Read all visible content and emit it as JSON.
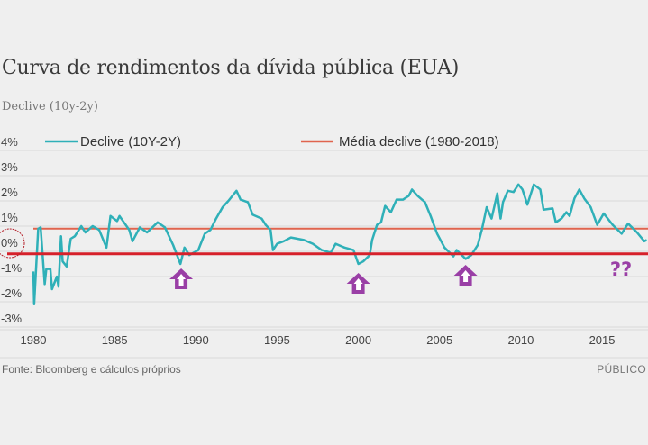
{
  "title": "Curva de rendimentos da dívida pública (EUA)",
  "subtitle": "Declive (10y-2y)",
  "source": "Fonte: Bloomberg e cálculos próprios",
  "brand": "PÚBLICO",
  "colors": {
    "series": "#2fb0b8",
    "average": "#e0644e",
    "annotation_line": "#d6202a",
    "annotation_arrows": "#9a3fa6",
    "grid": "#d8d8d8"
  },
  "annotations": {
    "question_marks": "??",
    "arrow_years": [
      1989.1,
      2000.0,
      2006.6
    ],
    "zero_line_value": -0.1,
    "circled_tick": "0%"
  },
  "chart_data": {
    "type": "line",
    "title": "Curva de rendimentos da dívida pública (EUA)",
    "subtitle": "Declive (10y-2y)",
    "xlabel": "",
    "ylabel": "",
    "xlim": [
      1978.9,
      2017.85
    ],
    "ylim": [
      -3,
      4
    ],
    "grid": true,
    "legend_position": "top",
    "x_ticks": [
      1980,
      1985,
      1990,
      1995,
      2000,
      2005,
      2010,
      2015
    ],
    "x_tick_labels": [
      "1980",
      "1985",
      "1990",
      "1995",
      "2000",
      "2005",
      "2010",
      "2015"
    ],
    "y_ticks": [
      4,
      3,
      2,
      1,
      0,
      -1,
      -2,
      -3
    ],
    "y_tick_labels": [
      "4%",
      "3%",
      "2%",
      "1%",
      "0%",
      "-1%",
      "-2%",
      "-3%"
    ],
    "series": [
      {
        "name": "Declive (10Y-2Y)",
        "x": [
          1980.0,
          1980.05,
          1980.3,
          1980.45,
          1980.7,
          1980.8,
          1981.05,
          1981.15,
          1981.45,
          1981.55,
          1981.7,
          1981.8,
          1982.05,
          1982.3,
          1982.55,
          1982.95,
          1983.2,
          1983.65,
          1984.05,
          1984.5,
          1984.75,
          1985.15,
          1985.3,
          1985.9,
          1986.1,
          1986.55,
          1987.0,
          1987.65,
          1988.1,
          1988.6,
          1989.05,
          1989.3,
          1989.6,
          1990.15,
          1990.55,
          1990.9,
          1991.25,
          1991.65,
          1992.0,
          1992.5,
          1992.75,
          1993.2,
          1993.5,
          1994.05,
          1994.3,
          1994.6,
          1994.75,
          1995.0,
          1995.4,
          1995.85,
          1996.65,
          1997.2,
          1997.75,
          1998.3,
          1998.6,
          1999.15,
          1999.7,
          2000.0,
          2000.3,
          2000.7,
          2000.85,
          2001.15,
          2001.4,
          2001.65,
          2002.0,
          2002.35,
          2002.75,
          2003.1,
          2003.3,
          2003.65,
          2004.1,
          2004.45,
          2004.85,
          2005.3,
          2005.85,
          2006.05,
          2006.6,
          2006.95,
          2007.35,
          2007.6,
          2007.9,
          2008.2,
          2008.55,
          2008.75,
          2008.9,
          2009.2,
          2009.55,
          2009.85,
          2010.1,
          2010.4,
          2010.8,
          2011.2,
          2011.4,
          2011.95,
          2012.15,
          2012.5,
          2012.8,
          2013.0,
          2013.3,
          2013.6,
          2013.9,
          2014.3,
          2014.7,
          2015.1,
          2015.65,
          2016.2,
          2016.6,
          2017.15,
          2017.6,
          2017.75
        ],
        "values": [
          -0.8,
          -2.1,
          0.9,
          0.95,
          -1.3,
          -0.7,
          -0.7,
          -1.5,
          -1.0,
          -1.4,
          0.6,
          -0.4,
          -0.6,
          0.5,
          0.6,
          1.0,
          0.75,
          1.0,
          0.85,
          0.15,
          1.4,
          1.2,
          1.4,
          0.85,
          0.4,
          0.95,
          0.75,
          1.15,
          0.95,
          0.25,
          -0.5,
          0.15,
          -0.15,
          0.05,
          0.7,
          0.85,
          1.3,
          1.75,
          2.0,
          2.4,
          2.05,
          1.95,
          1.45,
          1.3,
          1.05,
          0.85,
          0.05,
          0.3,
          0.4,
          0.55,
          0.45,
          0.3,
          0.05,
          -0.05,
          0.3,
          0.15,
          0.05,
          -0.5,
          -0.4,
          -0.15,
          0.45,
          1.05,
          1.15,
          1.8,
          1.55,
          2.05,
          2.05,
          2.2,
          2.45,
          2.2,
          1.95,
          1.4,
          0.7,
          0.15,
          -0.2,
          0.05,
          -0.3,
          -0.15,
          0.25,
          0.85,
          1.75,
          1.3,
          2.3,
          1.3,
          1.95,
          2.4,
          2.35,
          2.65,
          2.45,
          1.85,
          2.65,
          2.45,
          1.65,
          1.7,
          1.15,
          1.3,
          1.55,
          1.4,
          2.1,
          2.45,
          2.1,
          1.75,
          1.05,
          1.5,
          1.05,
          0.7,
          1.1,
          0.75,
          0.4,
          0.45
        ]
      },
      {
        "name": "Média declive (1980-2018)",
        "x": [
          1980.0,
          2017.85
        ],
        "values": [
          0.9,
          0.9
        ]
      }
    ]
  }
}
